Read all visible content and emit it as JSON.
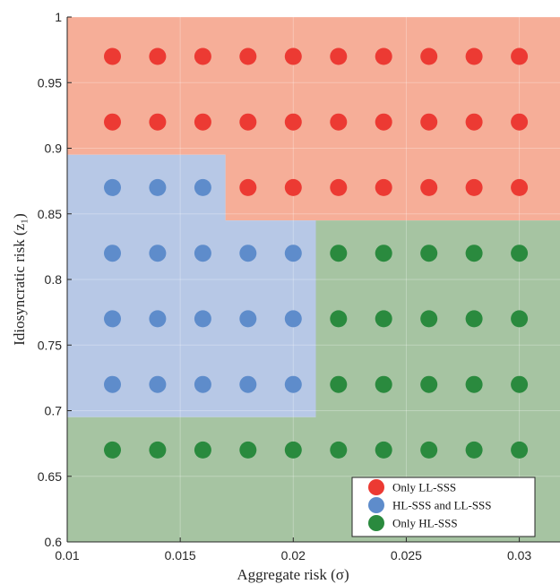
{
  "chart_data": {
    "type": "scatter",
    "xlabel": "Aggregate risk (σ)",
    "ylabel": "Idiosyncratic risk (z₁)",
    "xlim": [
      0.01,
      0.0318
    ],
    "ylim": [
      0.6,
      1.0
    ],
    "x_ticks": [
      "0.01",
      "0.015",
      "0.02",
      "0.025",
      "0.03"
    ],
    "x_tick_values": [
      0.01,
      0.015,
      0.02,
      0.025,
      0.03
    ],
    "y_ticks": [
      "0.6",
      "0.65",
      "0.7",
      "0.75",
      "0.8",
      "0.85",
      "0.9",
      "0.95",
      "1"
    ],
    "y_tick_values": [
      0.6,
      0.65,
      0.7,
      0.75,
      0.8,
      0.85,
      0.9,
      0.95,
      1.0
    ],
    "grid": true,
    "legend_position": "bottom-right",
    "colors": {
      "red_region": "#f6ae98",
      "blue_region": "#b7c8e6",
      "green_region": "#a6c4a2",
      "red_point": "#ec3a33",
      "blue_point": "#5e8ccb",
      "green_point": "#2a8a3e"
    },
    "regions": [
      {
        "class": "red",
        "polygon": [
          [
            0.01,
            0.895
          ],
          [
            0.017,
            0.895
          ],
          [
            0.017,
            0.845
          ],
          [
            0.0318,
            0.845
          ],
          [
            0.0318,
            1.0
          ],
          [
            0.01,
            1.0
          ]
        ]
      },
      {
        "class": "blue",
        "polygon": [
          [
            0.01,
            0.695
          ],
          [
            0.021,
            0.695
          ],
          [
            0.021,
            0.845
          ],
          [
            0.017,
            0.845
          ],
          [
            0.017,
            0.895
          ],
          [
            0.01,
            0.895
          ]
        ]
      },
      {
        "class": "green",
        "polygon": [
          [
            0.01,
            0.6
          ],
          [
            0.0318,
            0.6
          ],
          [
            0.0318,
            0.845
          ],
          [
            0.021,
            0.845
          ],
          [
            0.021,
            0.695
          ],
          [
            0.01,
            0.695
          ]
        ]
      }
    ],
    "series": [
      {
        "name": "Only LL-SSS",
        "class": "red",
        "points": [
          [
            0.012,
            0.97
          ],
          [
            0.014,
            0.97
          ],
          [
            0.016,
            0.97
          ],
          [
            0.018,
            0.97
          ],
          [
            0.02,
            0.97
          ],
          [
            0.022,
            0.97
          ],
          [
            0.024,
            0.97
          ],
          [
            0.026,
            0.97
          ],
          [
            0.028,
            0.97
          ],
          [
            0.03,
            0.97
          ],
          [
            0.012,
            0.92
          ],
          [
            0.014,
            0.92
          ],
          [
            0.016,
            0.92
          ],
          [
            0.018,
            0.92
          ],
          [
            0.02,
            0.92
          ],
          [
            0.022,
            0.92
          ],
          [
            0.024,
            0.92
          ],
          [
            0.026,
            0.92
          ],
          [
            0.028,
            0.92
          ],
          [
            0.03,
            0.92
          ],
          [
            0.018,
            0.87
          ],
          [
            0.02,
            0.87
          ],
          [
            0.022,
            0.87
          ],
          [
            0.024,
            0.87
          ],
          [
            0.026,
            0.87
          ],
          [
            0.028,
            0.87
          ],
          [
            0.03,
            0.87
          ]
        ]
      },
      {
        "name": "HL-SSS and LL-SSS",
        "class": "blue",
        "points": [
          [
            0.012,
            0.87
          ],
          [
            0.014,
            0.87
          ],
          [
            0.016,
            0.87
          ],
          [
            0.012,
            0.82
          ],
          [
            0.014,
            0.82
          ],
          [
            0.016,
            0.82
          ],
          [
            0.018,
            0.82
          ],
          [
            0.02,
            0.82
          ],
          [
            0.012,
            0.77
          ],
          [
            0.014,
            0.77
          ],
          [
            0.016,
            0.77
          ],
          [
            0.018,
            0.77
          ],
          [
            0.02,
            0.77
          ],
          [
            0.012,
            0.72
          ],
          [
            0.014,
            0.72
          ],
          [
            0.016,
            0.72
          ],
          [
            0.018,
            0.72
          ],
          [
            0.02,
            0.72
          ]
        ]
      },
      {
        "name": "Only HL-SSS",
        "class": "green",
        "points": [
          [
            0.022,
            0.82
          ],
          [
            0.024,
            0.82
          ],
          [
            0.026,
            0.82
          ],
          [
            0.028,
            0.82
          ],
          [
            0.03,
            0.82
          ],
          [
            0.022,
            0.77
          ],
          [
            0.024,
            0.77
          ],
          [
            0.026,
            0.77
          ],
          [
            0.028,
            0.77
          ],
          [
            0.03,
            0.77
          ],
          [
            0.022,
            0.72
          ],
          [
            0.024,
            0.72
          ],
          [
            0.026,
            0.72
          ],
          [
            0.028,
            0.72
          ],
          [
            0.03,
            0.72
          ],
          [
            0.012,
            0.67
          ],
          [
            0.014,
            0.67
          ],
          [
            0.016,
            0.67
          ],
          [
            0.018,
            0.67
          ],
          [
            0.02,
            0.67
          ],
          [
            0.022,
            0.67
          ],
          [
            0.024,
            0.67
          ],
          [
            0.026,
            0.67
          ],
          [
            0.028,
            0.67
          ],
          [
            0.03,
            0.67
          ]
        ]
      }
    ]
  }
}
